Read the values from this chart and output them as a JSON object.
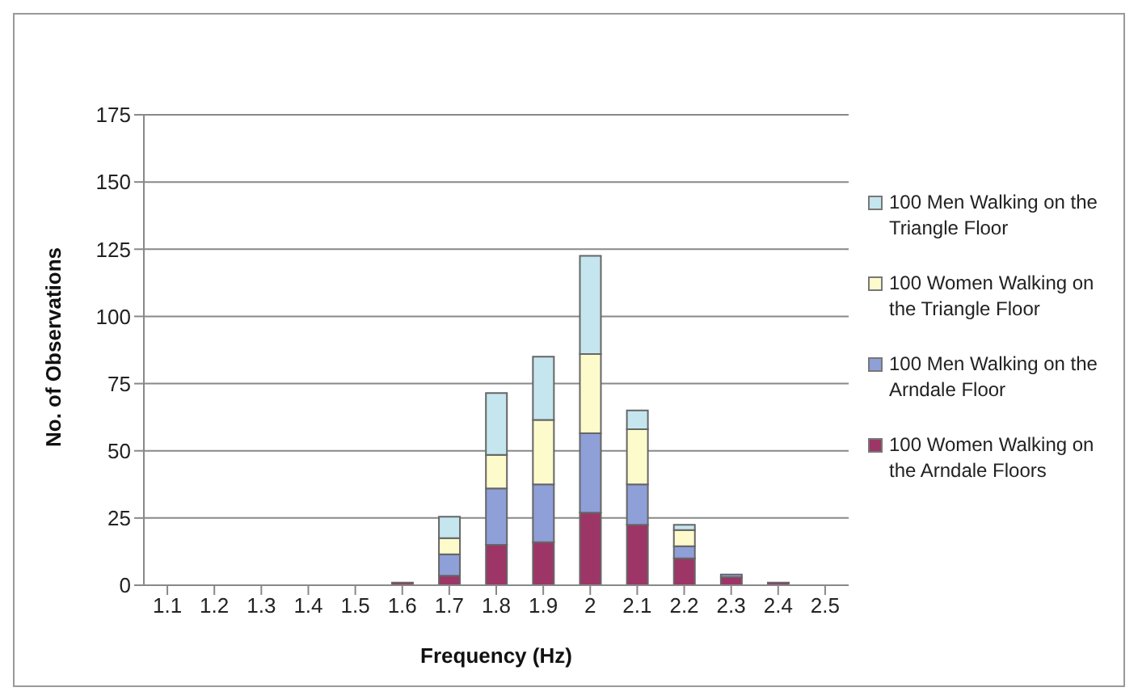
{
  "chart_data": {
    "type": "bar",
    "stacked": true,
    "xlabel": "Frequency (Hz)",
    "ylabel": "No. of Observations",
    "categories": [
      "1.1",
      "1.2",
      "1.3",
      "1.4",
      "1.5",
      "1.6",
      "1.7",
      "1.8",
      "1.9",
      "2",
      "2.1",
      "2.2",
      "2.3",
      "2.4",
      "2.5"
    ],
    "series": [
      {
        "name": "100 Women Walking on the Arndale Floors",
        "color": "#9e3567",
        "values": [
          0,
          0,
          0,
          0,
          0,
          1,
          3.5,
          15,
          16,
          27,
          22.5,
          10,
          3,
          1,
          0
        ]
      },
      {
        "name": "100 Men Walking on the Arndale Floor",
        "color": "#8f9fd8",
        "values": [
          0,
          0,
          0,
          0,
          0,
          0,
          8,
          21,
          21.5,
          29.5,
          15,
          4.5,
          1,
          0,
          0
        ]
      },
      {
        "name": "100 Women Walking on the Triangle Floor",
        "color": "#fdfbcc",
        "values": [
          0,
          0,
          0,
          0,
          0,
          0,
          6,
          12.5,
          24,
          29.5,
          20.5,
          6,
          0,
          0,
          0
        ]
      },
      {
        "name": "100 Men Walking on the Triangle Floor",
        "color": "#c5e6ef",
        "values": [
          0,
          0,
          0,
          0,
          0,
          0,
          8,
          23,
          23.5,
          36.5,
          7,
          2,
          0,
          0,
          0
        ]
      }
    ],
    "ylim": [
      0,
      175
    ],
    "yticks": [
      0,
      25,
      50,
      75,
      100,
      125,
      150,
      175
    ],
    "grid": "y",
    "legend": "right"
  }
}
